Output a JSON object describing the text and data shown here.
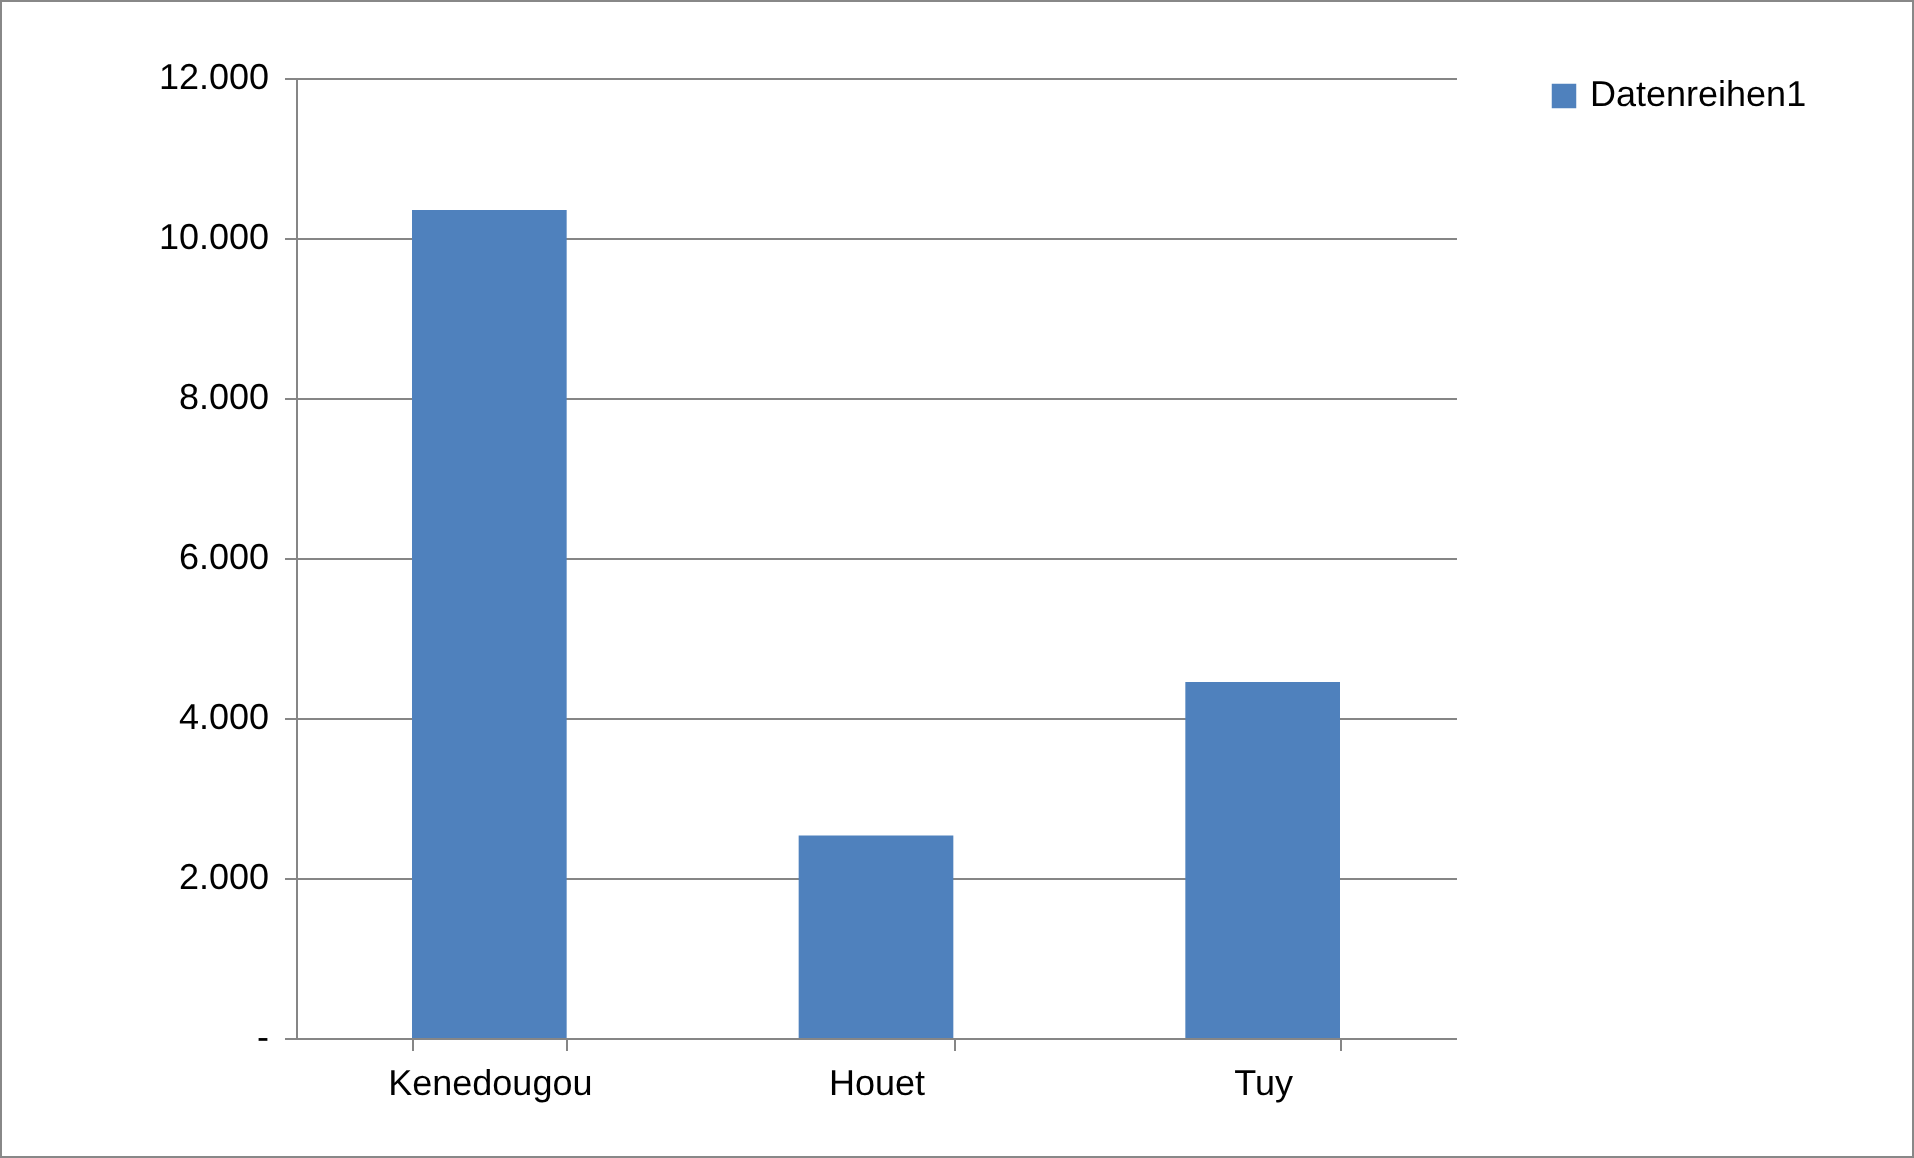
{
  "chart_data": {
    "type": "bar",
    "categories": [
      "Kenedougou",
      "Houet",
      "Tuy"
    ],
    "series": [
      {
        "name": "Datenreihen1",
        "color": "#4f81bd",
        "values": [
          10350,
          2530,
          4450
        ]
      }
    ],
    "ylim": [
      0,
      12000
    ],
    "yticks": [
      {
        "value": 0,
        "label": "-"
      },
      {
        "value": 2000,
        "label": "2.000"
      },
      {
        "value": 4000,
        "label": "4.000"
      },
      {
        "value": 6000,
        "label": "6.000"
      },
      {
        "value": 8000,
        "label": "8.000"
      },
      {
        "value": 10000,
        "label": "10.000"
      },
      {
        "value": 12000,
        "label": "12.000"
      }
    ],
    "grid": "y",
    "legend": "right"
  }
}
